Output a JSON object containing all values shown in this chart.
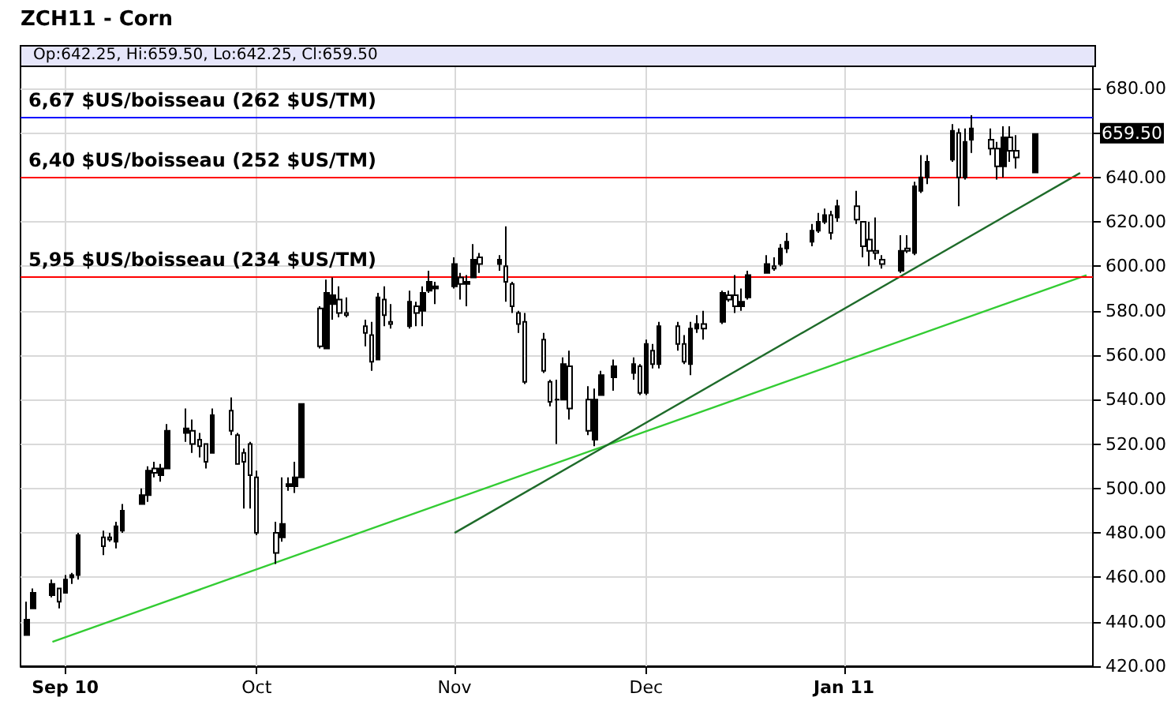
{
  "chart_data": {
    "type": "candlestick",
    "title": "ZCH11 - Corn",
    "subtitle": "Op:642.25, Hi:659.50, Lo:642.25, Cl:659.50",
    "color": "#000000",
    "x": [
      "2010-08-26",
      "2010-08-27",
      "2010-08-30",
      "2010-08-31",
      "2010-09-01",
      "2010-09-02",
      "2010-09-03",
      "2010-09-07",
      "2010-09-08",
      "2010-09-09",
      "2010-09-10",
      "2010-09-13",
      "2010-09-14",
      "2010-09-15",
      "2010-09-16",
      "2010-09-17",
      "2010-09-20",
      "2010-09-21",
      "2010-09-22",
      "2010-09-23",
      "2010-09-24",
      "2010-09-27",
      "2010-09-28",
      "2010-09-29",
      "2010-09-30",
      "2010-10-01",
      "2010-10-04",
      "2010-10-05",
      "2010-10-06",
      "2010-10-07",
      "2010-10-08",
      "2010-10-11",
      "2010-10-12",
      "2010-10-13",
      "2010-10-14",
      "2010-10-15",
      "2010-10-18",
      "2010-10-19",
      "2010-10-20",
      "2010-10-21",
      "2010-10-22",
      "2010-10-25",
      "2010-10-26",
      "2010-10-27",
      "2010-10-28",
      "2010-10-29",
      "2010-11-01",
      "2010-11-02",
      "2010-11-03",
      "2010-11-04",
      "2010-11-05",
      "2010-11-08",
      "2010-11-09",
      "2010-11-10",
      "2010-11-11",
      "2010-11-12",
      "2010-11-15",
      "2010-11-16",
      "2010-11-17",
      "2010-11-18",
      "2010-11-19",
      "2010-11-22",
      "2010-11-23",
      "2010-11-24",
      "2010-11-26",
      "2010-11-29",
      "2010-11-30",
      "2010-12-01",
      "2010-12-02",
      "2010-12-03",
      "2010-12-06",
      "2010-12-07",
      "2010-12-08",
      "2010-12-09",
      "2010-12-10",
      "2010-12-13",
      "2010-12-14",
      "2010-12-15",
      "2010-12-16",
      "2010-12-17",
      "2010-12-20",
      "2010-12-21",
      "2010-12-22",
      "2010-12-23",
      "2010-12-27",
      "2010-12-28",
      "2010-12-29",
      "2010-12-30",
      "2010-12-31",
      "2011-01-03",
      "2011-01-04",
      "2011-01-05",
      "2011-01-06",
      "2011-01-07",
      "2011-01-10",
      "2011-01-11",
      "2011-01-12",
      "2011-01-13",
      "2011-01-14",
      "2011-01-18",
      "2011-01-19",
      "2011-01-20",
      "2011-01-21",
      "2011-01-24",
      "2011-01-25",
      "2011-01-26",
      "2011-01-27",
      "2011-01-28",
      "2011-01-31"
    ],
    "ohlc": [
      [
        434,
        449,
        434,
        441
      ],
      [
        446,
        455,
        446,
        453
      ],
      [
        452,
        459,
        451,
        457
      ],
      [
        455,
        455,
        446,
        449
      ],
      [
        453,
        461,
        453,
        459
      ],
      [
        460,
        462,
        457,
        461
      ],
      [
        461,
        480,
        459,
        479
      ],
      [
        478,
        481,
        470,
        474
      ],
      [
        478,
        480,
        476,
        477
      ],
      [
        476,
        485,
        473,
        483
      ],
      [
        481,
        493,
        480,
        490
      ],
      [
        493,
        500,
        493,
        497
      ],
      [
        497,
        510,
        494,
        508
      ],
      [
        509,
        512,
        505,
        507
      ],
      [
        506,
        511,
        503,
        509
      ],
      [
        509,
        529,
        509,
        526
      ],
      [
        525,
        536,
        521,
        527
      ],
      [
        526,
        531,
        516,
        520
      ],
      [
        522,
        525,
        514,
        519
      ],
      [
        520,
        520,
        509,
        512
      ],
      [
        516,
        536,
        516,
        533
      ],
      [
        535,
        541,
        524,
        526
      ],
      [
        524,
        525,
        511,
        511
      ],
      [
        516,
        518,
        491,
        512
      ],
      [
        520,
        521,
        491,
        506
      ],
      [
        505,
        508,
        479,
        480
      ],
      [
        480,
        485,
        466,
        471
      ],
      [
        478,
        505,
        476,
        484
      ],
      [
        501,
        505,
        499,
        502
      ],
      [
        501,
        512,
        498,
        505
      ],
      [
        505,
        538,
        505,
        538
      ],
      [
        581,
        582,
        563,
        564
      ],
      [
        563,
        594,
        563,
        588
      ],
      [
        583,
        595,
        576,
        587
      ],
      [
        585,
        591,
        577,
        579
      ],
      [
        579,
        586,
        577,
        578
      ],
      [
        573,
        576,
        564,
        570
      ],
      [
        569,
        575,
        553,
        557
      ],
      [
        558,
        588,
        558,
        586
      ],
      [
        585,
        591,
        573,
        578
      ],
      [
        575,
        583,
        572,
        574
      ],
      [
        573,
        589,
        572,
        584
      ],
      [
        582,
        584,
        573,
        579
      ],
      [
        580,
        591,
        573,
        588
      ],
      [
        589,
        598,
        588,
        593
      ],
      [
        590,
        593,
        583,
        591
      ],
      [
        591,
        604,
        590,
        601
      ],
      [
        595,
        597,
        585,
        592
      ],
      [
        592,
        596,
        582,
        593
      ],
      [
        595,
        610,
        595,
        603
      ],
      [
        604,
        606,
        597,
        601
      ],
      [
        601,
        605,
        598,
        603
      ],
      [
        600,
        618,
        584,
        593
      ],
      [
        592,
        593,
        579,
        582
      ],
      [
        579,
        580,
        570,
        574
      ],
      [
        575,
        579,
        547,
        548
      ],
      [
        567,
        570,
        552,
        553
      ],
      [
        548,
        549,
        537,
        539
      ],
      [
        540,
        549,
        520,
        540
      ],
      [
        540,
        559,
        540,
        556
      ],
      [
        555,
        562,
        531,
        536
      ],
      [
        540,
        546,
        524,
        526
      ],
      [
        522,
        545,
        519,
        540
      ],
      [
        542,
        553,
        542,
        551
      ],
      [
        550,
        558,
        544,
        555
      ],
      [
        552,
        559,
        549,
        556
      ],
      [
        555,
        556,
        542,
        543
      ],
      [
        543,
        567,
        542,
        565
      ],
      [
        562,
        565,
        554,
        556
      ],
      [
        556,
        575,
        554,
        573
      ],
      [
        573,
        575,
        562,
        565
      ],
      [
        565,
        569,
        556,
        557
      ],
      [
        556,
        575,
        551,
        572
      ],
      [
        572,
        578,
        570,
        574
      ],
      [
        574,
        580,
        567,
        572
      ],
      [
        575,
        589,
        574,
        588
      ],
      [
        587,
        589,
        584,
        585
      ],
      [
        587,
        596,
        579,
        582
      ],
      [
        582,
        590,
        580,
        584
      ],
      [
        586,
        598,
        585,
        596
      ],
      [
        597,
        605,
        597,
        601
      ],
      [
        600,
        604,
        598,
        599
      ],
      [
        601,
        610,
        600,
        608
      ],
      [
        608,
        615,
        606,
        611
      ],
      [
        611,
        619,
        609,
        616
      ],
      [
        616,
        624,
        615,
        620
      ],
      [
        620,
        626,
        619,
        623
      ],
      [
        623,
        625,
        612,
        615
      ],
      [
        622,
        630,
        620,
        627
      ],
      [
        627,
        634,
        619,
        621
      ],
      [
        620,
        620,
        604,
        609
      ],
      [
        612,
        620,
        600,
        607
      ],
      [
        607,
        622,
        603,
        606
      ],
      [
        603,
        605,
        599,
        601
      ],
      [
        598,
        614,
        597,
        607
      ],
      [
        608,
        614,
        606,
        607
      ],
      [
        606,
        638,
        605,
        636
      ],
      [
        634,
        650,
        633,
        640
      ],
      [
        640,
        650,
        637,
        647
      ],
      [
        648,
        664,
        647,
        661
      ],
      [
        660,
        662,
        627,
        640
      ],
      [
        640,
        662,
        639,
        656
      ],
      [
        657,
        668,
        651,
        662
      ],
      [
        657,
        662,
        650,
        653
      ],
      [
        653,
        656,
        639,
        645
      ],
      [
        645,
        663,
        640,
        658
      ],
      [
        658,
        663,
        647,
        652
      ],
      [
        652,
        659,
        644,
        649
      ],
      [
        642.25,
        659.5,
        642.25,
        659.5
      ]
    ],
    "series": [
      {
        "type": "line",
        "color": "#33cc33",
        "x": [
          "2010-08-30",
          "2011-02-08"
        ],
        "values": [
          431,
          596
        ]
      },
      {
        "type": "line",
        "color": "#1e6b2a",
        "x": [
          "2010-11-01",
          "2011-02-07"
        ],
        "values": [
          480,
          642
        ]
      }
    ],
    "xlim": [
      "2010-08-25",
      "2011-02-09"
    ],
    "xticks": [
      {
        "value": "2010-09-01",
        "label": "Sep 10"
      },
      {
        "value": "2010-10-01",
        "label": "Oct"
      },
      {
        "value": "2010-11-01",
        "label": "Nov"
      },
      {
        "value": "2010-12-01",
        "label": "Dec"
      },
      {
        "value": "2011-01-01",
        "label": "Jan 11"
      }
    ],
    "ylim": [
      420,
      690
    ],
    "yticks": [
      {
        "value": 420,
        "label": "420.00"
      },
      {
        "value": 440,
        "label": "440.00"
      },
      {
        "value": 460,
        "label": "460.00"
      },
      {
        "value": 480,
        "label": "480.00"
      },
      {
        "value": 500,
        "label": "500.00"
      },
      {
        "value": 520,
        "label": "520.00"
      },
      {
        "value": 540,
        "label": "540.00"
      },
      {
        "value": 560,
        "label": "560.00"
      },
      {
        "value": 580,
        "label": "580.00"
      },
      {
        "value": 600,
        "label": "600.00"
      },
      {
        "value": 620,
        "label": "620.00"
      },
      {
        "value": 640,
        "label": "640.00"
      },
      {
        "value": 660,
        "label": null
      },
      {
        "value": 680,
        "label": "680.00"
      }
    ],
    "ref_lines": [
      {
        "axis": "y",
        "value": 667,
        "label": "6,67 $US/boisseau (262 $US/TM)",
        "color": "#0000ff"
      },
      {
        "axis": "y",
        "value": 640,
        "label": "6,40 $US/boisseau (252 $US/TM)",
        "color": "#ff0000"
      },
      {
        "axis": "y",
        "value": 595,
        "label": "5,95 $US/boisseau (234 $US/TM)",
        "color": "#ff0000"
      }
    ],
    "annotations": [
      "659.50"
    ],
    "grid": true
  }
}
